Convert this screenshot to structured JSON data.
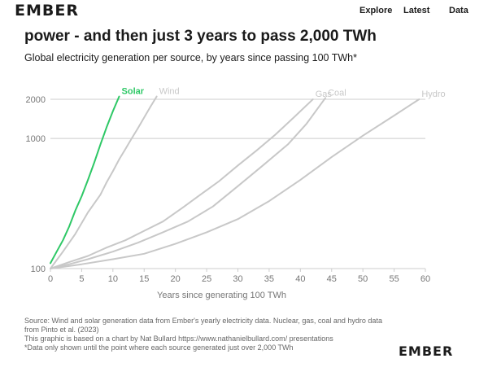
{
  "brand": {
    "logo_text": "EMBER"
  },
  "nav": {
    "items": [
      "Explore",
      "Latest",
      "Data"
    ]
  },
  "header": {
    "title": "power - and then just 3 years to pass 2,000 TWh",
    "subtitle": "Global electricity generation per source, by years since passing 100 TWh*"
  },
  "chart_data": {
    "type": "line",
    "title": "",
    "xlabel": "Years since generating 100 TWh",
    "ylabel": "",
    "xlim": [
      0,
      60
    ],
    "ylim": [
      100,
      2000
    ],
    "yscale": "log",
    "x_ticks": [
      0,
      5,
      10,
      15,
      20,
      25,
      30,
      35,
      40,
      45,
      50,
      55,
      60
    ],
    "y_ticks": [
      100,
      1000,
      2000
    ],
    "y_tick_labels": [
      "100",
      "1000",
      "2000"
    ],
    "grid": "horizontal",
    "colors": {
      "Solar": "#2ec866",
      "other": "#c8c8c8",
      "axis": "#cccccc",
      "tick_text": "#777777"
    },
    "series": [
      {
        "name": "Solar",
        "x": [
          0,
          1,
          2,
          3,
          4,
          5,
          6,
          7,
          8,
          9,
          10,
          11
        ],
        "y": [
          110,
          135,
          165,
          210,
          280,
          360,
          480,
          650,
          900,
          1220,
          1620,
          2100
        ]
      },
      {
        "name": "Wind",
        "x": [
          0,
          2,
          4,
          6,
          8,
          9,
          10,
          11,
          12,
          13,
          14,
          15,
          16,
          17
        ],
        "y": [
          100,
          135,
          185,
          270,
          370,
          460,
          560,
          690,
          830,
          1000,
          1200,
          1450,
          1750,
          2100
        ]
      },
      {
        "name": "Gas",
        "x": [
          0,
          3,
          6,
          9,
          12,
          15,
          18,
          21,
          24,
          27,
          30,
          33,
          36,
          39,
          42
        ],
        "y": [
          100,
          112,
          125,
          145,
          165,
          195,
          230,
          290,
          370,
          470,
          620,
          810,
          1070,
          1460,
          2000
        ]
      },
      {
        "name": "Coal",
        "x": [
          0,
          3,
          6,
          10,
          14,
          18,
          22,
          26,
          30,
          34,
          38,
          41,
          44
        ],
        "y": [
          100,
          108,
          118,
          135,
          158,
          190,
          230,
          300,
          430,
          620,
          900,
          1300,
          2050
        ]
      },
      {
        "name": "Hydro",
        "x": [
          0,
          5,
          10,
          15,
          20,
          25,
          30,
          35,
          40,
          45,
          50,
          55,
          59
        ],
        "y": [
          100,
          108,
          118,
          130,
          155,
          190,
          240,
          330,
          480,
          720,
          1050,
          1500,
          2000
        ]
      }
    ],
    "series_label_positions": [
      "end",
      "end",
      "end",
      "end",
      "end"
    ]
  },
  "notes": {
    "source": "Source: Wind and solar generation data from Ember's yearly electricity data. Nuclear, gas, coal and hydro data from Pinto et al. (2023)",
    "credit": "This graphic is based on a chart by Nat Bullard https://www.nathanielbullard.com/ presentations",
    "footnote": "*Data only shown until the point where each source generated just over 2,000 TWh"
  }
}
